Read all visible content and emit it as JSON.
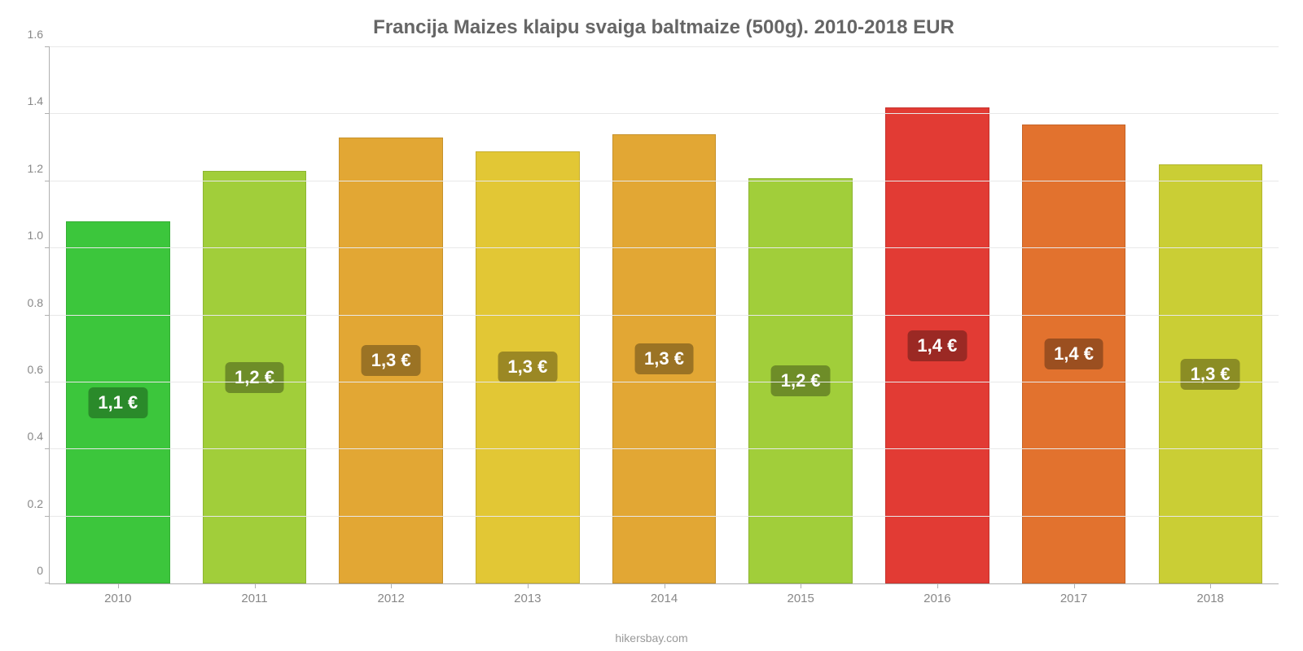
{
  "chart": {
    "type": "bar",
    "title": "Francija Maizes klaipu svaiga baltmaize (500g). 2010-2018 EUR",
    "title_fontsize": 24,
    "title_color": "#666666",
    "categories": [
      "2010",
      "2011",
      "2012",
      "2013",
      "2014",
      "2015",
      "2016",
      "2017",
      "2018"
    ],
    "values": [
      1.08,
      1.23,
      1.33,
      1.29,
      1.34,
      1.21,
      1.42,
      1.37,
      1.25
    ],
    "value_labels": [
      "1,1 €",
      "1,2 €",
      "1,3 €",
      "1,3 €",
      "1,3 €",
      "1,2 €",
      "1,4 €",
      "1,4 €",
      "1,3 €"
    ],
    "bar_colors": [
      "#3cc63c",
      "#a1ce3a",
      "#e2a734",
      "#e2c735",
      "#e2a734",
      "#a1ce3a",
      "#e23b34",
      "#e2722e",
      "#cace35"
    ],
    "label_bg_colors": [
      "#2a8a2a",
      "#6e8d28",
      "#9b7324",
      "#9b8824",
      "#9b7324",
      "#6e8d28",
      "#9b2924",
      "#9b4f20",
      "#8b8d24"
    ],
    "label_text_color": "#ffffff",
    "label_fontsize": 22,
    "ylim": [
      0,
      1.6
    ],
    "yticks": [
      0,
      0.2,
      0.4,
      0.6,
      0.8,
      1.0,
      1.2,
      1.4,
      1.6
    ],
    "ytick_labels": [
      "0",
      "0.2",
      "0.4",
      "0.6",
      "0.8",
      "1.0",
      "1.2",
      "1.4",
      "1.6"
    ],
    "axis_label_fontsize": 14,
    "axis_label_color": "#888888",
    "grid_color": "#e8e8e8",
    "axis_line_color": "#b0b0b0",
    "background_color": "#ffffff",
    "bar_width": 0.76,
    "attribution": "hikersbay.com",
    "attribution_color": "#999999"
  }
}
